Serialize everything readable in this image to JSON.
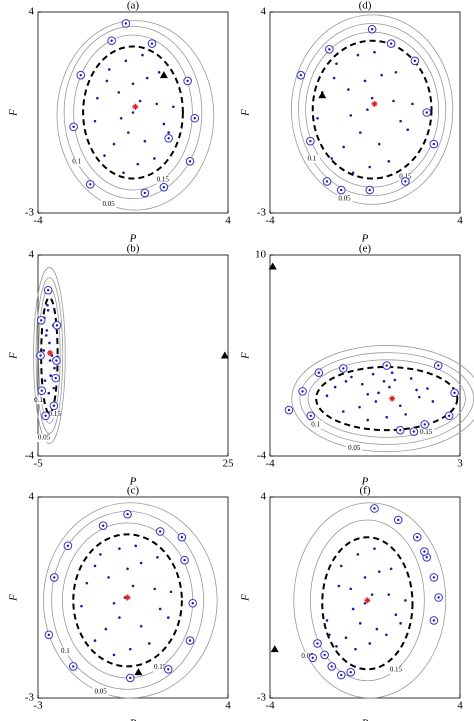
{
  "chart_data": [
    {
      "type": "scatter",
      "title": "(a)",
      "x_label": "P",
      "y_label": "F",
      "xlim": [
        -4,
        4
      ],
      "ylim": [
        -3,
        4
      ],
      "xticks": [
        -4,
        4
      ],
      "yticks": [
        -3,
        4
      ],
      "point_color": "#1a1aa0",
      "outlier_color": "#3333cc",
      "center_color": "#e02020",
      "points": {
        "x": [
          -1.5,
          -1,
          -0.5,
          0,
          0.5,
          1,
          1.5,
          -1.2,
          -0.3,
          0.4,
          1.1,
          -0.8,
          0.2,
          0.9,
          -1.6,
          1.7,
          -0.6,
          0.6,
          0,
          -0.2,
          1.3,
          -1.1,
          0.3,
          -0.4
        ],
        "y": [
          1,
          2,
          0.3,
          1.5,
          -0.5,
          0.8,
          -0.2,
          -1,
          2.3,
          2.5,
          1.9,
          -0.6,
          -1.3,
          -1.1,
          0.2,
          0.7,
          1.2,
          1.7,
          0.5,
          -0.2,
          0.1,
          1.6,
          0.9,
          -1.6
        ]
      },
      "outliers": {
        "x": [
          -0.3,
          0.8,
          -2.2,
          2.3,
          -2.5,
          2.6,
          -1.8,
          1.3,
          0.5,
          -0.9,
          2.4,
          1.5
        ],
        "y": [
          3.6,
          2.9,
          1.8,
          1.6,
          0,
          0.3,
          -2,
          -2.1,
          -2.3,
          3,
          -1.2,
          -0.4
        ]
      },
      "new_point": {
        "x": 1.3,
        "y": 1.8
      },
      "center": {
        "x": 0.1,
        "y": 0.7
      },
      "ellipse": {
        "cx": 0,
        "cy": 0.5,
        "rx": 2.1,
        "ry": 2.3
      },
      "contours": [
        {
          "level": 0.15,
          "cx": 0,
          "cy": 0.5,
          "rx": 2.5,
          "ry": 2.7
        },
        {
          "level": 0.1,
          "cx": 0,
          "cy": 0.5,
          "rx": 2.9,
          "ry": 3.0
        },
        {
          "level": 0.05,
          "cx": 0.1,
          "cy": 0.4,
          "rx": 3.3,
          "ry": 3.3
        }
      ]
    },
    {
      "type": "scatter",
      "title": "(d)",
      "x_label": "P",
      "y_label": "F",
      "xlim": [
        -4,
        4
      ],
      "ylim": [
        -3,
        4
      ],
      "xticks": [
        -4,
        4
      ],
      "yticks": [
        -3,
        4
      ],
      "point_color": "#1a1aa0",
      "outlier_color": "#3333cc",
      "center_color": "#e02020",
      "points": {
        "x": [
          -1.8,
          -1.2,
          -0.6,
          0,
          0.6,
          1.2,
          1.8,
          -1.4,
          -0.3,
          0.4,
          1.3,
          -0.9,
          0.2,
          1,
          -2,
          2,
          -0.7,
          0.7,
          0.1,
          -0.2,
          1.5,
          -1.3,
          0.3,
          -0.5
        ],
        "y": [
          1.2,
          2.2,
          0.4,
          1.6,
          -0.6,
          0.9,
          -0.1,
          -1.1,
          2.5,
          2.6,
          1.9,
          -0.7,
          -1.4,
          -1.2,
          0.3,
          0.8,
          1.3,
          1.8,
          0.6,
          -0.2,
          0.2,
          1.7,
          1,
          -1.6
        ]
      },
      "outliers": {
        "x": [
          0.3,
          1.1,
          -1.5,
          2.1,
          -2.3,
          2.6,
          -1.6,
          1.7,
          0.2,
          -1,
          2.9,
          -2.7
        ],
        "y": [
          3.4,
          2.9,
          2.7,
          2.3,
          -0.5,
          0.5,
          -1.9,
          -1.9,
          -2.2,
          -2.2,
          -0.6,
          1.8
        ]
      },
      "new_point": {
        "x": -1.8,
        "y": 1.1
      },
      "center": {
        "x": 0.4,
        "y": 0.8
      },
      "ellipse": {
        "cx": 0.3,
        "cy": 0.6,
        "rx": 2.5,
        "ry": 2.4
      },
      "contours": [
        {
          "level": 0.15,
          "cx": 0.3,
          "cy": 0.6,
          "rx": 2.8,
          "ry": 2.7
        },
        {
          "level": 0.1,
          "cx": 0.3,
          "cy": 0.6,
          "rx": 3.1,
          "ry": 3.0
        },
        {
          "level": 0.05,
          "cx": 0.3,
          "cy": 0.6,
          "rx": 3.4,
          "ry": 3.3
        }
      ]
    },
    {
      "type": "scatter",
      "title": "(b)",
      "x_label": "P",
      "y_label": "F",
      "xlim": [
        -5,
        25
      ],
      "ylim": [
        -4,
        4
      ],
      "xticks": [
        -5,
        25
      ],
      "yticks": [
        -4,
        4
      ],
      "point_color": "#1a1aa0",
      "outlier_color": "#3333cc",
      "center_color": "#e02020",
      "points": {
        "x": [
          -4,
          -3.6,
          -3.2,
          -2.8,
          -2.4,
          -3.9,
          -3.3,
          -2.6,
          -3.5,
          -2.9,
          -4.1,
          -3,
          -3.7,
          -2.5,
          -3.4,
          -3.1
        ],
        "y": [
          1.5,
          1,
          0.5,
          0,
          -0.5,
          -1,
          -1.5,
          1.2,
          2,
          -2,
          0.2,
          -0.8,
          0.8,
          -1.3,
          1.8,
          -0.2
        ]
      },
      "outliers": {
        "x": [
          -3.4,
          -4.5,
          -2,
          -4.6,
          -2.1,
          -3.8,
          -2.5,
          -4.4,
          -2.2
        ],
        "y": [
          2.6,
          1.4,
          1.2,
          0,
          -0.2,
          -2.4,
          -2,
          -1.4,
          -0.9
        ]
      },
      "new_point": {
        "x": 24.5,
        "y": 0
      },
      "center": {
        "x": -3.1,
        "y": 0.1
      },
      "ellipse": {
        "cx": -3.2,
        "cy": 0,
        "rx": 1.3,
        "ry": 2.3
      },
      "contours": [
        {
          "level": 0.15,
          "cx": -3.2,
          "cy": 0,
          "rx": 1.7,
          "ry": 2.7
        },
        {
          "level": 0.1,
          "cx": -3.2,
          "cy": 0,
          "rx": 2.1,
          "ry": 3.1
        },
        {
          "level": 0.05,
          "cx": -3.2,
          "cy": 0,
          "rx": 2.5,
          "ry": 3.5
        }
      ]
    },
    {
      "type": "scatter",
      "title": "(e)",
      "x_label": "P",
      "y_label": "F",
      "xlim": [
        -4,
        3
      ],
      "ylim": [
        -4,
        10
      ],
      "xticks": [
        -4,
        3
      ],
      "yticks": [
        -4,
        10
      ],
      "point_color": "#1a1aa0",
      "outlier_color": "#3333cc",
      "center_color": "#e02020",
      "points": {
        "x": [
          -1.6,
          -1,
          -0.4,
          0.2,
          0.8,
          1.4,
          2,
          -1.3,
          -0.2,
          0.5,
          1.2,
          -0.7,
          0.3,
          1,
          -1.9,
          1.8,
          -0.6,
          0.6,
          0,
          -0.1,
          1.5,
          -1.2,
          0.4,
          -0.4
        ],
        "y": [
          0.8,
          1.5,
          0.3,
          1.2,
          -0.5,
          0.6,
          -0.2,
          -0.9,
          1.7,
          1.8,
          1.4,
          -0.6,
          -1.3,
          -1.1,
          0.2,
          0.7,
          1,
          1.3,
          0.4,
          -0.2,
          0.1,
          1.2,
          0.8,
          -1.5
        ]
      },
      "outliers": {
        "x": [
          -2.8,
          -2.2,
          2.2,
          2.8,
          -2.5,
          1.7,
          2.6,
          1.3,
          -3.3,
          0.3,
          -1.3,
          0.8
        ],
        "y": [
          0.5,
          1.8,
          2.3,
          0.4,
          -1.2,
          -1.8,
          -1.2,
          -2.3,
          -0.8,
          2.3,
          2.1,
          -2.2
        ]
      },
      "new_point": {
        "x": -3.9,
        "y": 9.2
      },
      "center": {
        "x": 0.5,
        "y": 0
      },
      "ellipse": {
        "cx": 0.3,
        "cy": 0,
        "rx": 2.6,
        "ry": 2.2
      },
      "contours": [
        {
          "level": 0.15,
          "cx": 0.3,
          "cy": 0,
          "rx": 2.9,
          "ry": 2.7
        },
        {
          "level": 0.1,
          "cx": 0.3,
          "cy": 0,
          "rx": 3.2,
          "ry": 3.2
        },
        {
          "level": 0.05,
          "cx": 0.3,
          "cy": 0,
          "rx": 3.5,
          "ry": 3.7
        }
      ]
    },
    {
      "type": "scatter",
      "title": "(c)",
      "x_label": "P",
      "y_label": "F",
      "xlim": [
        -3,
        4
      ],
      "ylim": [
        -3,
        4
      ],
      "xticks": [
        -3,
        4
      ],
      "yticks": [
        -3,
        4
      ],
      "point_color": "#1a1aa0",
      "outlier_color": "#3333cc",
      "center_color": "#e02020",
      "points": {
        "x": [
          -1.2,
          -0.7,
          -0.2,
          0.3,
          0.8,
          1.3,
          1.8,
          -0.9,
          0,
          0.6,
          1.4,
          -0.5,
          0.4,
          1.1,
          -1.4,
          1.9,
          -0.4,
          0.8,
          0.2,
          0,
          1.5,
          -0.9,
          0.5,
          -0.2
        ],
        "y": [
          1,
          2,
          0.3,
          1.5,
          -0.5,
          0.8,
          -0.2,
          -1,
          2.2,
          2.3,
          1.9,
          -0.6,
          -1.3,
          -1.1,
          0.2,
          0.7,
          1.2,
          1.7,
          0.5,
          -0.2,
          0.1,
          1.6,
          0.9,
          -1.5
        ]
      },
      "outliers": {
        "x": [
          0.3,
          1.5,
          -1.9,
          2.4,
          -2.4,
          2.7,
          -1.7,
          1.8,
          0.4,
          -0.6,
          2.6,
          -2.6,
          2.3
        ],
        "y": [
          3.4,
          2.8,
          2.3,
          1.8,
          1.2,
          0.3,
          -1.9,
          -2,
          -2.3,
          3,
          -1,
          -0.8,
          2.6
        ]
      },
      "new_point": {
        "x": 0.7,
        "y": -2.1
      },
      "center": {
        "x": 0.3,
        "y": 0.5
      },
      "ellipse": {
        "cx": 0.3,
        "cy": 0.4,
        "rx": 2,
        "ry": 2.3
      },
      "contours": [
        {
          "level": 0.15,
          "cx": 0.3,
          "cy": 0.4,
          "rx": 2.4,
          "ry": 2.7
        },
        {
          "level": 0.1,
          "cx": 0.3,
          "cy": 0.4,
          "rx": 2.8,
          "ry": 3.1
        },
        {
          "level": 0.05,
          "cx": 0.4,
          "cy": 0.4,
          "rx": 3.2,
          "ry": 3.4
        }
      ]
    },
    {
      "type": "scatter",
      "title": "(f)",
      "x_label": "P",
      "y_label": "F",
      "xlim": [
        -4,
        4
      ],
      "ylim": [
        -3,
        4
      ],
      "xticks": [
        -4,
        4
      ],
      "yticks": [
        -3,
        4
      ],
      "point_color": "#1a1aa0",
      "outlier_color": "#3333cc",
      "center_color": "#e02020",
      "points": {
        "x": [
          -1.5,
          -1,
          -0.5,
          0,
          0.5,
          1,
          1.5,
          -1.2,
          -0.3,
          0.4,
          1.1,
          -0.8,
          0.2,
          0.9,
          -1.6,
          1.7,
          -0.6,
          0.6,
          0,
          -0.2,
          1.3,
          -1.1,
          0.3,
          -0.4
        ],
        "y": [
          -0.8,
          1.6,
          0.1,
          1.2,
          -0.6,
          0.6,
          -0.4,
          -1.2,
          2,
          2.2,
          1.5,
          -0.9,
          -1.1,
          -0.8,
          -0.3,
          0.4,
          0.8,
          1.4,
          0.3,
          -0.4,
          -0.1,
          0.9,
          0.6,
          -1.3
        ]
      },
      "outliers": {
        "x": [
          0.4,
          1.4,
          2.2,
          2.6,
          2.9,
          3.1,
          -1.7,
          -1.4,
          -1,
          -0.6,
          -2,
          -2.2,
          2.5,
          2.9
        ],
        "y": [
          3.6,
          3.2,
          2.6,
          1.9,
          1.2,
          0.5,
          -1.5,
          -1.9,
          -2.2,
          -2.1,
          -1.1,
          -1.6,
          2.1,
          -0.3
        ]
      },
      "new_point": {
        "x": -3.8,
        "y": -1.3
      },
      "center": {
        "x": 0.1,
        "y": 0.4
      },
      "ellipse": {
        "cx": 0.1,
        "cy": 0.3,
        "rx": 1.9,
        "ry": 2.3
      },
      "contours": [
        {
          "level": 0.15,
          "cx": 0.1,
          "cy": 0.4,
          "rx": 2.4,
          "ry": 2.8
        },
        {
          "level": 0.05,
          "cx": 0.2,
          "cy": 0.4,
          "rx": 3.2,
          "ry": 3.4
        }
      ]
    }
  ]
}
